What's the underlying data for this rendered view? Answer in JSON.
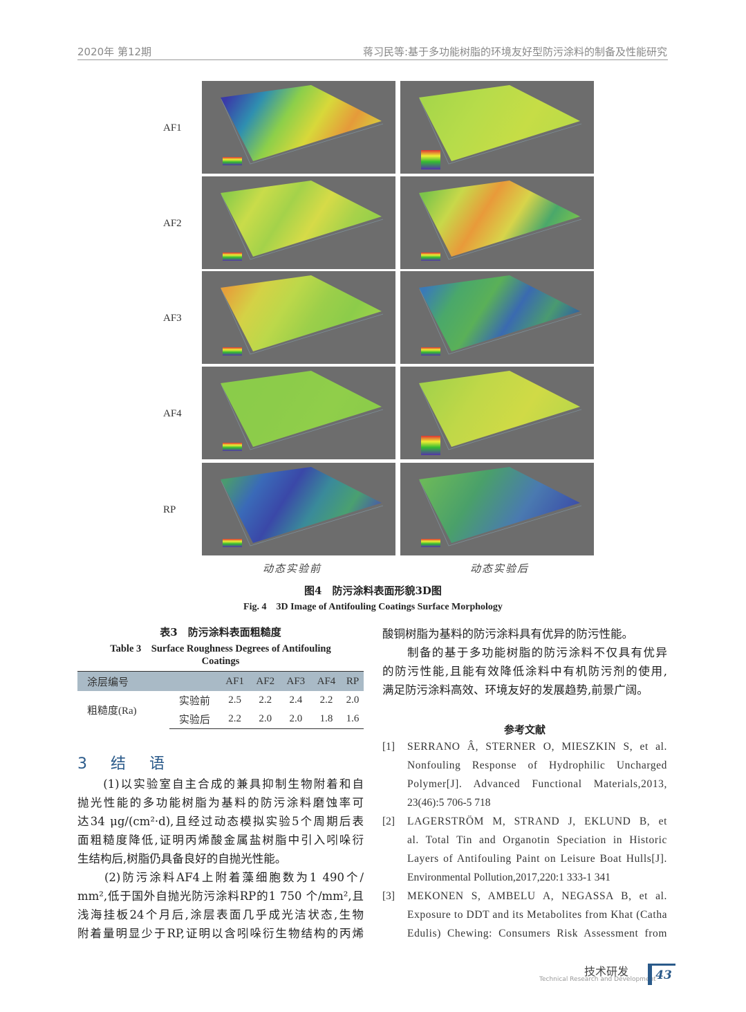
{
  "header": {
    "left": "2020年 第12期",
    "right": "蒋习民等:基于多功能树脂的环境友好型防污涂料的制备及性能研究"
  },
  "figure": {
    "rows": [
      "AF1",
      "AF2",
      "AF3",
      "AF4",
      "RP"
    ],
    "columns": [
      "动态实验前",
      "动态实验后"
    ],
    "caption_cn": "图4　防污涂料表面形貌3D图",
    "caption_en": "Fig. 4　3D Image of Antifouling Coatings Surface Morphology",
    "panel_background": "#6d6d6d"
  },
  "table": {
    "caption_cn": "表3　防污涂料表面粗糙度",
    "caption_en_1": "Table 3　Surface Roughness Degrees of Antifouling",
    "caption_en_2": "Coatings",
    "header": [
      "涂层编号",
      "",
      "AF1",
      "AF2",
      "AF3",
      "AF4",
      "RP"
    ],
    "row_label": "粗糙度(Ra)",
    "rows": [
      {
        "label": "实验前",
        "values": [
          "2.5",
          "2.2",
          "2.4",
          "2.2",
          "2.0"
        ]
      },
      {
        "label": "实验后",
        "values": [
          "2.2",
          "2.0",
          "2.0",
          "1.8",
          "1.6"
        ]
      }
    ],
    "header_color": "#a9bac6"
  },
  "section": {
    "title": "3　结　语"
  },
  "left_lines": [
    "　　(1)以实验室自主合成的兼具抑制生物附着和自",
    "抛光性能的多功能树脂为基料的防污涂料磨蚀率可",
    "达34 μg/(cm²·d),且经过动态模拟实验5个周期后表",
    "面粗糙度降低,证明丙烯酸金属盐树脂中引入吲哚衍",
    "生结构后,树脂仍具备良好的自抛光性能。",
    "　　(2)防污涂料AF4上附着藻细胞数为1 490个/",
    "mm²,低于国外自抛光防污涂料RP的1 750 个/mm²,且",
    "浅海挂板24个月后,涂层表面几乎成光洁状态,生物",
    "附着量明显少于RP,证明以含吲哚衍生物结构的丙烯"
  ],
  "right_lines": [
    "酸铜树脂为基料的防污涂料具有优异的防污性能。",
    "　　制备的基于多功能树脂的防污涂料不仅具有优异",
    "的防污性能,且能有效降低涂料中有机防污剂的使用,",
    "满足防污涂料高效、环境友好的发展趋势,前景广阔。"
  ],
  "references": {
    "title": "参考文献",
    "items": [
      {
        "num": "[1]",
        "lines": [
          "SERRANO Â, STERNER O, MIESZKIN S, et al.",
          "Nonfouling Response of Hydrophilic Uncharged",
          "Polymer[J]. Advanced Functional Materials,2013,",
          "23(46):5 706-5 718"
        ]
      },
      {
        "num": "[2]",
        "lines": [
          "LAGERSTRÖM M, STRAND J, EKLUND B, et",
          "al. Total Tin and Organotin Speciation in Historic",
          "Layers of Antifouling Paint on Leisure Boat Hulls[J].",
          "Environmental Pollution,2017,220:1 333-1 341"
        ]
      },
      {
        "num": "[3]",
        "lines": [
          "MEKONEN S, AMBELU A, NEGASSA B, et al.",
          "Exposure to DDT and its Metabolites from Khat (Catha",
          "Edulis) Chewing: Consumers Risk Assessment from"
        ]
      }
    ]
  },
  "footer": {
    "section_cn": "技术研发",
    "section_en": "Technical Research and Development",
    "page": "43",
    "accent": "#2a5a8a"
  }
}
